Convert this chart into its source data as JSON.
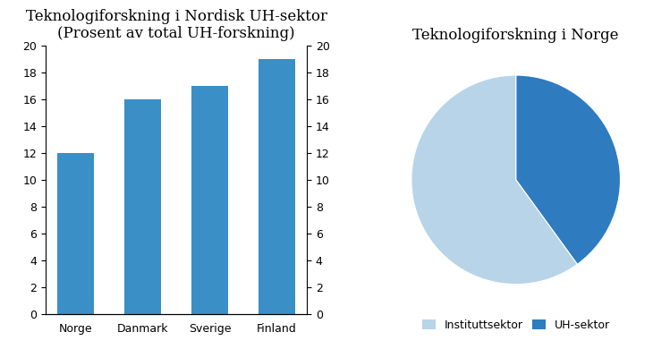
{
  "bar_categories": [
    "Norge",
    "Danmark",
    "Sverige",
    "Finland"
  ],
  "bar_values": [
    12,
    16,
    17,
    19
  ],
  "bar_color": "#3a8fc7",
  "bar_title_line1": "Teknologiforskning i Nordisk UH-sektor",
  "bar_title_line2": "(Prosent av total UH-forskning)",
  "bar_ylim": [
    0,
    20
  ],
  "bar_yticks": [
    0,
    2,
    4,
    6,
    8,
    10,
    12,
    14,
    16,
    18,
    20
  ],
  "pie_title": "Teknologiforskning i Norge",
  "pie_values": [
    40,
    60
  ],
  "pie_labels": [
    "UH-sektor",
    "Instituttsektor"
  ],
  "pie_colors": [
    "#2e7bbf",
    "#b8d4e8"
  ],
  "pie_startangle": 90,
  "legend_labels": [
    "Instituttsektor",
    "UH-sektor"
  ],
  "legend_colors": [
    "#b8d4e8",
    "#2e7bbf"
  ],
  "background_color": "#ffffff",
  "title_fontsize": 12,
  "tick_fontsize": 9,
  "legend_fontsize": 9
}
